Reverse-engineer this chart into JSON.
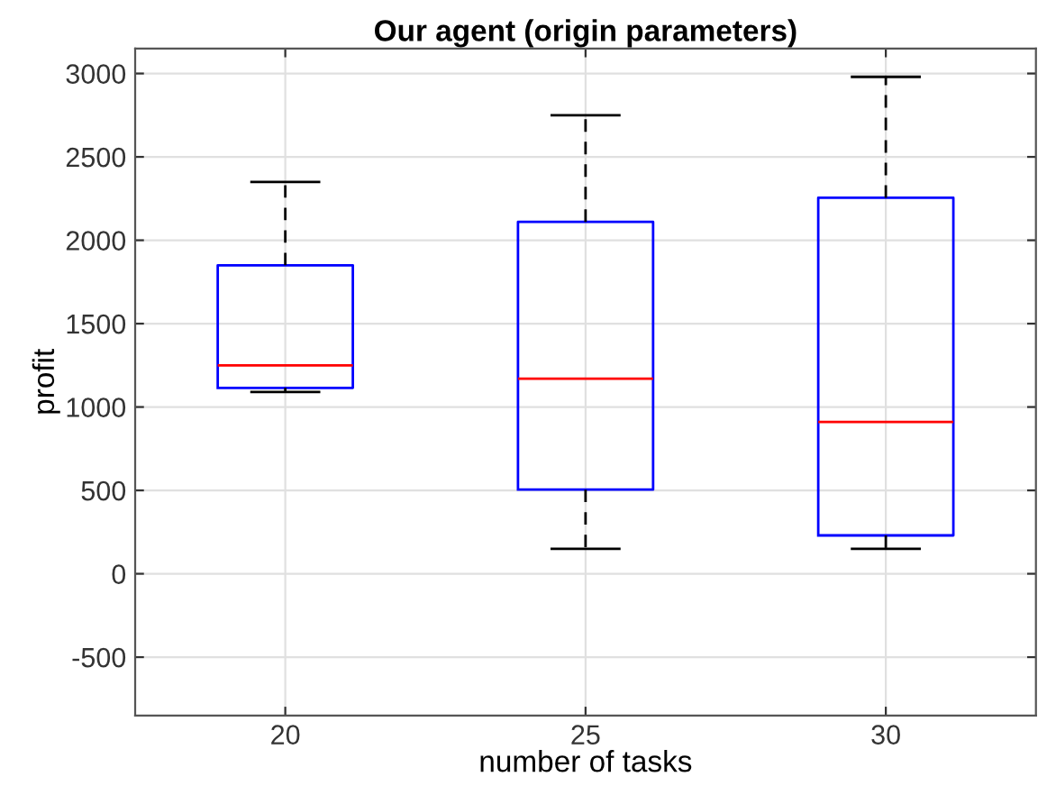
{
  "chart_data": {
    "type": "box",
    "title": "Our agent (origin parameters)",
    "xlabel": "number of tasks",
    "ylabel": "profit",
    "categories": [
      "20",
      "25",
      "30"
    ],
    "boxes": [
      {
        "low": 1090,
        "q1": 1115,
        "median": 1250,
        "q3": 1850,
        "high": 2350
      },
      {
        "low": 150,
        "q1": 505,
        "median": 1170,
        "q3": 2110,
        "high": 2750
      },
      {
        "low": 150,
        "q1": 230,
        "median": 910,
        "q3": 2255,
        "high": 2980
      }
    ],
    "color": "#0000ff",
    "ylim": [
      -850,
      3150
    ],
    "yticks": [
      -500,
      0,
      500,
      1000,
      1500,
      2000,
      2500,
      3000
    ],
    "grid": true
  }
}
